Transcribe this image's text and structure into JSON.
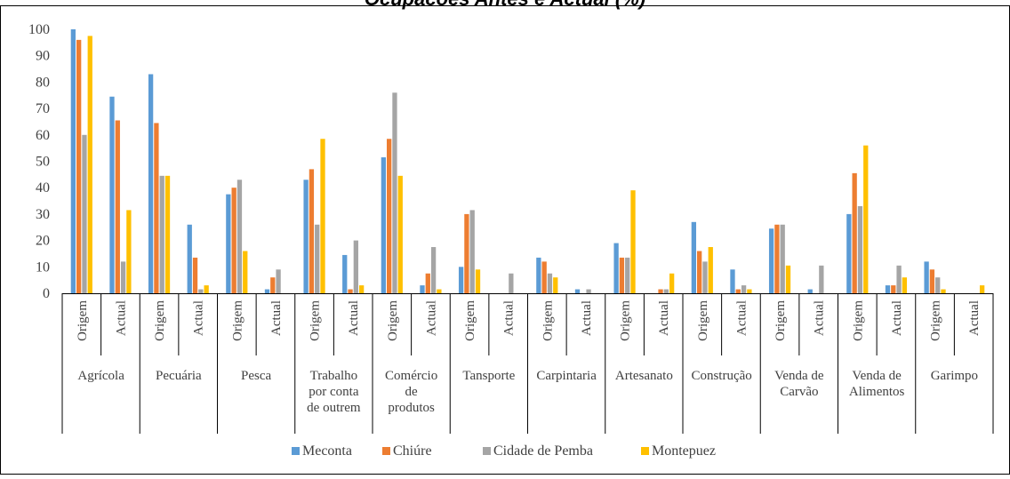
{
  "chart_data": {
    "type": "bar",
    "title": "Ocupacões Antes e Actual (%)",
    "ylim": [
      0,
      100
    ],
    "yticks": [
      0,
      10,
      20,
      30,
      40,
      50,
      60,
      70,
      80,
      90,
      100
    ],
    "grid": false,
    "legend_position": "bottom",
    "groups": [
      {
        "label": "Agrícola",
        "label_lines": [
          "Agrícola"
        ]
      },
      {
        "label": "Pecuária",
        "label_lines": [
          "Pecuária"
        ]
      },
      {
        "label": "Pesca",
        "label_lines": [
          "Pesca"
        ]
      },
      {
        "label": "Trabalho por conta de outrem",
        "label_lines": [
          "Trabalho",
          "por conta",
          "de outrem"
        ]
      },
      {
        "label": "Comércio de produtos",
        "label_lines": [
          "Comércio",
          "de",
          "produtos"
        ]
      },
      {
        "label": "Tansporte",
        "label_lines": [
          "Tansporte"
        ]
      },
      {
        "label": "Carpintaria",
        "label_lines": [
          "Carpintaria"
        ]
      },
      {
        "label": "Artesanato",
        "label_lines": [
          "Artesanato"
        ]
      },
      {
        "label": "Construção",
        "label_lines": [
          "Construção"
        ]
      },
      {
        "label": "Venda de Carvão",
        "label_lines": [
          "Venda de",
          "Carvão"
        ]
      },
      {
        "label": "Venda de Alimentos",
        "label_lines": [
          "Venda de",
          "Alimentos"
        ]
      },
      {
        "label": "Garimpo",
        "label_lines": [
          "Garimpo"
        ]
      }
    ],
    "subcategories": [
      "Origem",
      "Actual"
    ],
    "series": [
      {
        "name": "Meconta",
        "color": "#5B9BD5",
        "values": [
          100,
          74.5,
          83,
          26,
          37.5,
          1.5,
          43,
          14.5,
          51.5,
          3,
          10,
          0,
          13.5,
          1.5,
          19,
          0,
          27,
          9,
          24.5,
          1.5,
          30,
          3,
          12,
          0
        ]
      },
      {
        "name": "Chiúre",
        "color": "#ED7D31",
        "values": [
          96,
          65.5,
          64.5,
          13.5,
          40,
          6,
          47,
          1.5,
          58.5,
          7.5,
          30,
          0,
          12,
          0,
          13.5,
          1.5,
          16,
          1.5,
          26,
          0,
          45.5,
          3,
          9,
          0
        ]
      },
      {
        "name": "Cidade de Pemba",
        "color": "#A5A5A5",
        "values": [
          60,
          12,
          44.5,
          1.5,
          43,
          9,
          26,
          20,
          76,
          17.5,
          31.5,
          7.5,
          7.5,
          1.5,
          13.5,
          1.5,
          12,
          3,
          26,
          10.5,
          33,
          10.5,
          6,
          0
        ]
      },
      {
        "name": "Montepuez",
        "color": "#FFC000",
        "values": [
          97.5,
          31.5,
          44.5,
          3,
          16,
          0,
          58.5,
          3,
          44.5,
          1.5,
          9,
          0,
          6,
          0,
          39,
          7.5,
          17.5,
          1.5,
          10.5,
          0,
          56,
          6,
          1.5,
          3
        ]
      }
    ]
  }
}
